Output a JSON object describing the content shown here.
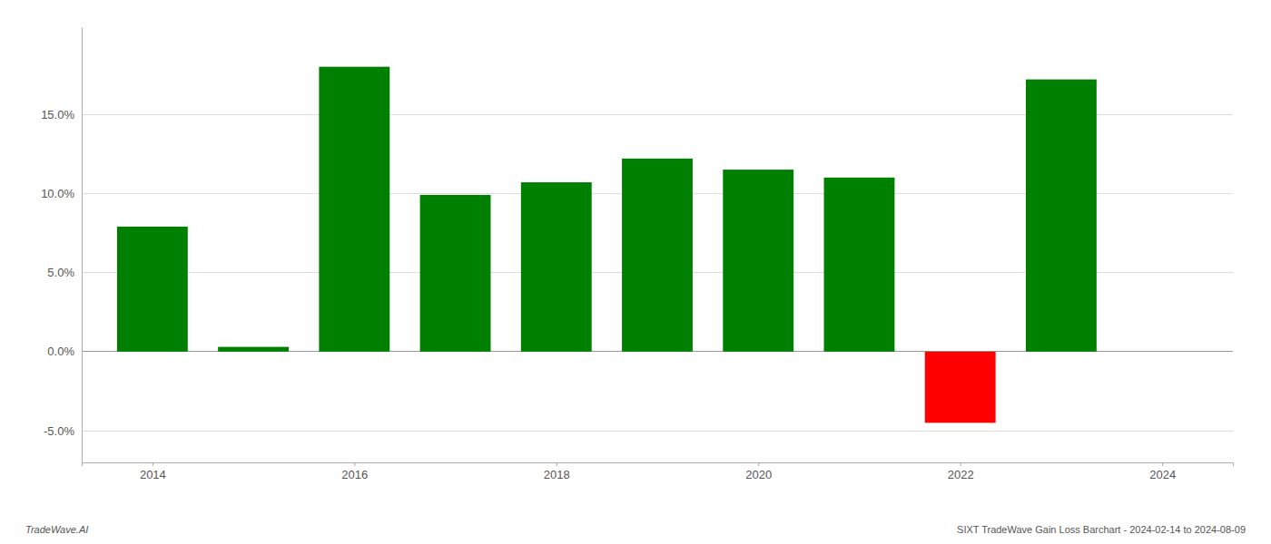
{
  "chart_data": {
    "type": "bar",
    "x": [
      2014,
      2015,
      2016,
      2017,
      2018,
      2019,
      2020,
      2021,
      2022,
      2023
    ],
    "values": [
      0.079,
      0.003,
      0.18,
      0.099,
      0.107,
      0.122,
      0.115,
      0.11,
      -0.045,
      0.172
    ],
    "colors": [
      "#008000",
      "#008000",
      "#008000",
      "#008000",
      "#008000",
      "#008000",
      "#008000",
      "#008000",
      "#ff0000",
      "#008000"
    ],
    "xlim": [
      2013.3,
      2024.7
    ],
    "xticks": [
      2014,
      2016,
      2018,
      2020,
      2022,
      2024
    ],
    "ylim": [
      -0.07,
      0.205
    ],
    "yticks": [
      {
        "value": -0.05,
        "label": "-5.0%"
      },
      {
        "value": 0.0,
        "label": "0.0%"
      },
      {
        "value": 0.05,
        "label": "5.0%"
      },
      {
        "value": 0.1,
        "label": "10.0%"
      },
      {
        "value": 0.15,
        "label": "15.0%"
      }
    ],
    "grid": true,
    "annotations": [
      "TradeWave.AI",
      "SIXT TradeWave Gain Loss Barchart - 2024-02-14 to 2024-08-09"
    ]
  }
}
